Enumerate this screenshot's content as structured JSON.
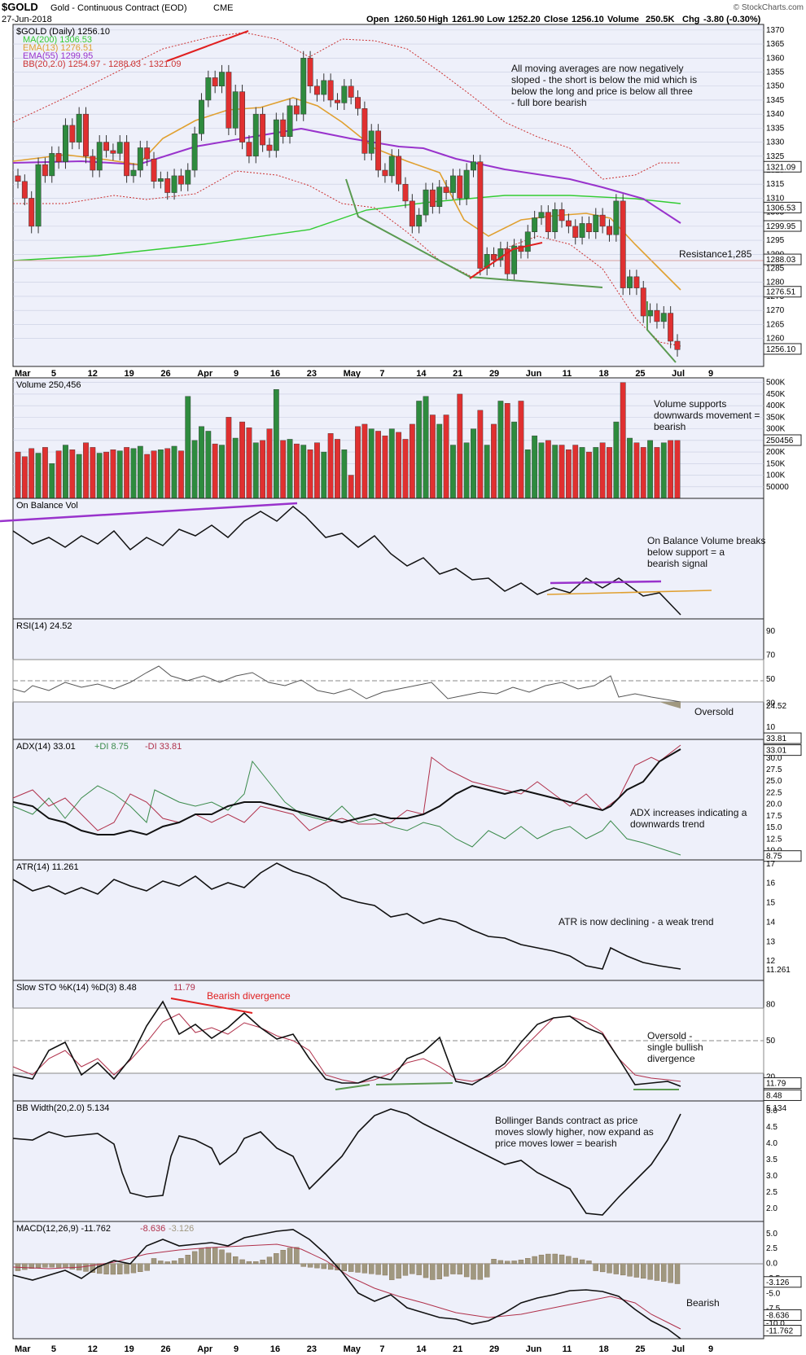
{
  "header": {
    "symbol": "$GOLD",
    "description": "Gold - Continuous Contract (EOD)",
    "exchange": "CME",
    "date": "27-Jun-2018",
    "open_label": "Open",
    "open": "1260.50",
    "high_label": "High",
    "high": "1261.90",
    "low_label": "Low",
    "low": "1252.20",
    "close_label": "Close",
    "close": "1256.10",
    "volume_label": "Volume",
    "volume": "250.5K",
    "chg_label": "Chg",
    "chg": "-3.80 (-0.30%)",
    "credit": "© StockCharts.com"
  },
  "colors": {
    "up": "#2e8b3e",
    "down": "#e03030",
    "ma200": "#33cc33",
    "ema13": "#e0a030",
    "ema55": "#9933cc",
    "bb": "#cc3333",
    "panel_bg": "#eef0fa",
    "grid": "#c8cce0"
  },
  "chart_data": [
    {
      "type": "candlestick",
      "panel": "price",
      "legend": [
        "$GOLD (Daily) 1256.10",
        "MA(200) 1306.53",
        "EMA(13) 1276.51",
        "EMA(55) 1299.95",
        "BB(20,2.0) 1254.97 - 1288.03 - 1321.09"
      ],
      "ylim": [
        1250,
        1372
      ],
      "yticks": [
        "1370",
        "1365",
        "1360",
        "1355",
        "1350",
        "1345",
        "1340",
        "1335",
        "1330",
        "1325",
        "1320",
        "1315",
        "1310",
        "1305",
        "1300",
        "1295",
        "1290",
        "1285",
        "1280",
        "1275",
        "1270",
        "1265",
        "1260"
      ],
      "right_labels": [
        "1321.09",
        "1306.53",
        "1299.95",
        "1288.03",
        "1276.51",
        "1256.10"
      ],
      "xlabels": [
        "Mar",
        "5",
        "12",
        "19",
        "26",
        "Apr",
        "9",
        "16",
        "23",
        "May",
        "7",
        "14",
        "21",
        "29",
        "Jun",
        "11",
        "18",
        "25",
        "Jul",
        "9"
      ],
      "closes": [
        1316,
        1310,
        1300,
        1322,
        1318,
        1326,
        1323,
        1336,
        1330,
        1340,
        1325,
        1320,
        1330,
        1327,
        1326,
        1330,
        1318,
        1320,
        1328,
        1324,
        1316,
        1317,
        1312,
        1318,
        1315,
        1320,
        1333,
        1345,
        1353,
        1350,
        1355,
        1335,
        1348,
        1330,
        1325,
        1340,
        1329,
        1327,
        1338,
        1332,
        1343,
        1340,
        1360,
        1350,
        1347,
        1352,
        1345,
        1344,
        1350,
        1346,
        1342,
        1326,
        1334,
        1320,
        1318,
        1325,
        1315,
        1309,
        1300,
        1304,
        1313,
        1307,
        1314,
        1312,
        1318,
        1310,
        1320,
        1323,
        1285,
        1290,
        1288,
        1292,
        1283,
        1293,
        1291,
        1298,
        1303,
        1305,
        1298,
        1306,
        1302,
        1300,
        1296,
        1301,
        1298,
        1304,
        1300,
        1297,
        1309,
        1278,
        1282,
        1278,
        1268,
        1270,
        1266,
        1269,
        1259,
        1256
      ],
      "annotations": [
        "All moving averages are now negatively sloped - the short is below the mid which is below the long and price is below all three - full bore bearish",
        "Resistance1,285"
      ]
    },
    {
      "type": "bar",
      "panel": "volume",
      "legend": "Volume 250,456",
      "yticks": [
        "500K",
        "450K",
        "400K",
        "350K",
        "300K",
        "250K",
        "200K",
        "150K",
        "100K",
        "50000"
      ],
      "right_label": "250456",
      "values": [
        200,
        180,
        215,
        195,
        220,
        150,
        205,
        230,
        210,
        190,
        240,
        220,
        195,
        200,
        210,
        205,
        220,
        215,
        225,
        190,
        205,
        210,
        215,
        225,
        205,
        440,
        250,
        310,
        290,
        235,
        230,
        350,
        260,
        330,
        305,
        240,
        250,
        300,
        470,
        250,
        255,
        235,
        230,
        210,
        240,
        200,
        280,
        255,
        210,
        100,
        310,
        320,
        300,
        290,
        270,
        300,
        285,
        255,
        320,
        420,
        440,
        360,
        320,
        360,
        230,
        450,
        240,
        300,
        380,
        230,
        320,
        420,
        410,
        330,
        420,
        210,
        270,
        240,
        250,
        230,
        230,
        210,
        230,
        220,
        200,
        220,
        240,
        220,
        330,
        500,
        260,
        240,
        220,
        250,
        220,
        240,
        250,
        250
      ],
      "annotations": [
        "Volume supports downwards movement = bearish"
      ]
    },
    {
      "type": "line",
      "panel": "obv",
      "legend": "On Balance Vol",
      "annotations": [
        "On Balance Volume breaks below support = a bearish signal"
      ]
    },
    {
      "type": "line",
      "panel": "rsi",
      "legend": "RSI(14) 24.52",
      "yticks": [
        "90",
        "70",
        "50",
        "30",
        "10"
      ],
      "right_label": "24.52",
      "ylim": [
        0,
        100
      ],
      "annotations": [
        "Oversold"
      ]
    },
    {
      "type": "line",
      "panel": "adx",
      "legend": [
        "ADX(14) 33.01",
        "+DI 8.75",
        "-DI 33.81"
      ],
      "yticks": [
        "30.0",
        "27.5",
        "25.0",
        "22.5",
        "20.0",
        "17.5",
        "15.0",
        "12.5",
        "10.0"
      ],
      "right_labels": [
        "33.81",
        "33.01",
        "8.75"
      ],
      "ylim": [
        8,
        34
      ],
      "annotations": [
        "ADX increases indicating a downwards trend"
      ]
    },
    {
      "type": "line",
      "panel": "atr",
      "legend": "ATR(14) 11.261",
      "yticks": [
        "17",
        "16",
        "15",
        "14",
        "13",
        "12"
      ],
      "right_label": "11.261",
      "ylim": [
        11,
        17.2
      ],
      "annotations": [
        "ATR is now declining - a weak trend"
      ]
    },
    {
      "type": "line",
      "panel": "sto",
      "legend": [
        "Slow STO %K(14) %D(3) 8.48",
        "11.79"
      ],
      "yticks": [
        "80",
        "50",
        "20"
      ],
      "right_labels": [
        "11.79",
        "8.48"
      ],
      "ylim": [
        0,
        100
      ],
      "annotations": [
        "Bearish divergence",
        "Oversold - single bullish divergence"
      ]
    },
    {
      "type": "line",
      "panel": "bbw",
      "legend": "BB Width(20,2.0) 5.134",
      "yticks": [
        "5.0",
        "4.5",
        "4.0",
        "3.5",
        "3.0",
        "2.5",
        "2.0"
      ],
      "right_label": "5.134",
      "ylim": [
        1.6,
        5.3
      ],
      "annotations": [
        "Bollinger Bands contract as price moves slowly higher, now expand as price moves lower = bearish"
      ]
    },
    {
      "type": "bar",
      "panel": "macd",
      "legend": [
        "MACD(12,26,9) -11.762",
        "-8.636",
        "-3.126"
      ],
      "yticks": [
        "5.0",
        "2.5",
        "0.0",
        "-2.5",
        "-5.0",
        "-7.5",
        "-10.0"
      ],
      "right_labels": [
        "-3.126",
        "-8.636",
        "-11.762"
      ],
      "ylim": [
        -12.5,
        7
      ],
      "annotations": [
        "Bearish"
      ]
    }
  ]
}
